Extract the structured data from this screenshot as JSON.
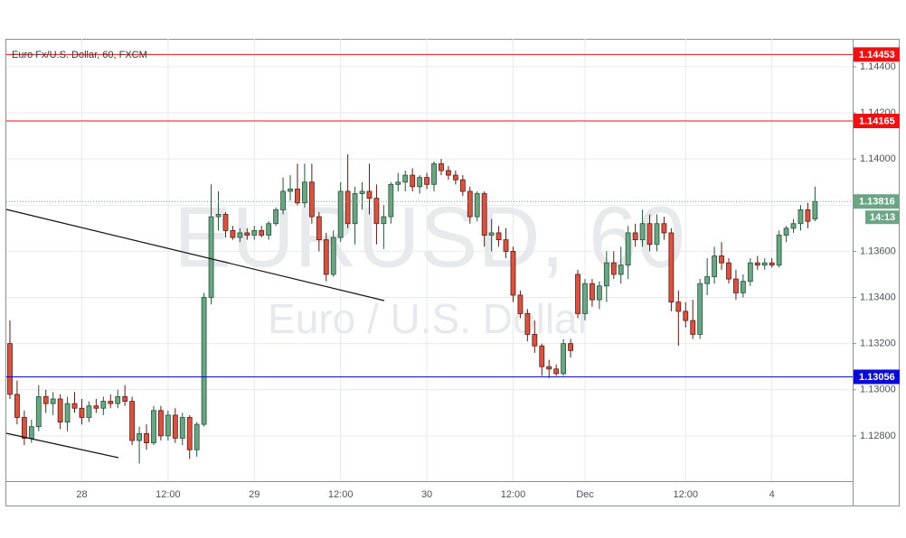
{
  "chart_data": {
    "type": "candlestick",
    "title": "Euro Fx/U.S. Dollar, 60, FXCM",
    "watermark": "EURUSD, 60",
    "watermark_subtitle": "Euro / U.S. Dollar",
    "categories": [
      null,
      null,
      null,
      null,
      null,
      null,
      null,
      null,
      null,
      null,
      "28",
      null,
      null,
      null,
      null,
      null,
      null,
      null,
      null,
      null,
      null,
      null,
      "12:00",
      null,
      null,
      null,
      null,
      null,
      null,
      null,
      null,
      null,
      null,
      null,
      "29",
      null,
      null,
      null,
      null,
      null,
      null,
      null,
      null,
      null,
      null,
      null,
      "12:00",
      null,
      null,
      null,
      null,
      null,
      null,
      null,
      null,
      null,
      null,
      null,
      "30",
      null,
      null,
      null,
      null,
      null,
      null,
      null,
      null,
      null,
      null,
      null,
      "12:00",
      null,
      null,
      null,
      null,
      null,
      null,
      null,
      null,
      null,
      "Dec",
      null,
      null,
      null,
      null,
      null,
      null,
      null,
      null,
      null,
      null,
      null,
      null,
      null,
      "12:00",
      null,
      null,
      null,
      null,
      null,
      null,
      null,
      null,
      null,
      null,
      null,
      "4",
      null,
      null,
      null,
      null,
      null,
      null
    ],
    "open": [
      1.132,
      1.1298,
      1.1288,
      1.1279,
      1.1284,
      1.1297,
      1.1294,
      1.1296,
      1.1286,
      1.1294,
      1.1292,
      1.1288,
      1.1293,
      1.1292,
      1.1295,
      1.1294,
      1.1297,
      1.1295,
      1.1278,
      1.1281,
      1.1277,
      1.1291,
      1.128,
      1.1289,
      1.1279,
      1.1288,
      1.1274,
      1.1285,
      1.134,
      1.1375,
      1.1376,
      1.1369,
      1.1366,
      1.1368,
      1.1367,
      1.1369,
      1.1367,
      1.1372,
      1.1378,
      1.1386,
      1.1387,
      1.1381,
      1.139,
      1.1375,
      1.1365,
      1.135,
      1.1366,
      1.1386,
      1.1372,
      1.1385,
      1.1386,
      1.1383,
      1.1372,
      1.1375,
      1.1389,
      1.139,
      1.1393,
      1.1388,
      1.1392,
      1.1389,
      1.1398,
      1.1395,
      1.1393,
      1.1391,
      1.1386,
      1.1375,
      1.1385,
      1.1367,
      1.1368,
      1.1365,
      1.136,
      1.1341,
      1.1333,
      1.1324,
      1.1319,
      1.131,
      1.1309,
      1.1307,
      1.132,
      1.135,
      1.1333,
      1.1346,
      1.1339,
      1.1345,
      1.1355,
      1.135,
      1.1354,
      1.1368,
      1.1365,
      1.1372,
      1.1363,
      1.1372,
      1.1368,
      1.1338,
      1.1334,
      1.133,
      1.1324,
      1.1346,
      1.1349,
      1.1358,
      1.1355,
      1.1348,
      1.1342,
      1.1347,
      1.1355,
      1.1354,
      1.1355,
      1.1354,
      1.1367,
      1.137,
      1.1372,
      1.1378,
      1.1374
    ],
    "high": [
      1.133,
      1.1304,
      1.1291,
      1.1287,
      1.1302,
      1.13,
      1.1299,
      1.1298,
      1.1297,
      1.1299,
      1.1296,
      1.1295,
      1.1296,
      1.1297,
      1.1298,
      1.13,
      1.1302,
      1.1297,
      1.1284,
      1.1285,
      1.1293,
      1.1293,
      1.1291,
      1.1292,
      1.129,
      1.1289,
      1.1286,
      1.1342,
      1.1389,
      1.1386,
      1.1377,
      1.1371,
      1.137,
      1.137,
      1.1371,
      1.1371,
      1.1373,
      1.1379,
      1.1392,
      1.1393,
      1.1398,
      1.1398,
      1.1398,
      1.1377,
      1.1368,
      1.1369,
      1.139,
      1.1402,
      1.1388,
      1.139,
      1.1398,
      1.1389,
      1.138,
      1.139,
      1.1394,
      1.1395,
      1.1396,
      1.1393,
      1.1394,
      1.1399,
      1.14,
      1.1397,
      1.1395,
      1.1393,
      1.1388,
      1.1386,
      1.1386,
      1.1374,
      1.1371,
      1.137,
      1.1362,
      1.1343,
      1.1335,
      1.133,
      1.132,
      1.1313,
      1.1311,
      1.1322,
      1.1322,
      1.1352,
      1.1348,
      1.1348,
      1.1347,
      1.136,
      1.136,
      1.1362,
      1.1371,
      1.1372,
      1.1378,
      1.1376,
      1.1376,
      1.1375,
      1.137,
      1.1343,
      1.1338,
      1.1339,
      1.1348,
      1.1357,
      1.1362,
      1.1364,
      1.1357,
      1.1352,
      1.135,
      1.1357,
      1.1358,
      1.1357,
      1.1357,
      1.1369,
      1.1371,
      1.1374,
      1.138,
      1.1381,
      1.1388
    ],
    "low": [
      1.1296,
      1.1285,
      1.1276,
      1.1277,
      1.1282,
      1.129,
      1.1289,
      1.1283,
      1.1282,
      1.129,
      1.1285,
      1.1286,
      1.129,
      1.1289,
      1.1292,
      1.1292,
      1.1293,
      1.1276,
      1.1268,
      1.1274,
      1.1276,
      1.1278,
      1.1278,
      1.1277,
      1.1276,
      1.127,
      1.1271,
      1.1284,
      1.1337,
      1.1369,
      1.1366,
      1.1365,
      1.1364,
      1.1365,
      1.1365,
      1.1366,
      1.1365,
      1.1371,
      1.1376,
      1.1382,
      1.138,
      1.1379,
      1.1372,
      1.136,
      1.1347,
      1.1349,
      1.1364,
      1.137,
      1.1363,
      1.1378,
      1.1376,
      1.1363,
      1.1361,
      1.1372,
      1.1386,
      1.1386,
      1.1386,
      1.1385,
      1.1387,
      1.1386,
      1.1393,
      1.1391,
      1.1389,
      1.1384,
      1.1372,
      1.1373,
      1.1362,
      1.136,
      1.1362,
      1.1357,
      1.1338,
      1.1331,
      1.1321,
      1.1316,
      1.1306,
      1.1305,
      1.1306,
      1.1306,
      1.1314,
      1.1331,
      1.133,
      1.1336,
      1.1335,
      1.1338,
      1.1348,
      1.1346,
      1.1348,
      1.1362,
      1.1362,
      1.136,
      1.136,
      1.1365,
      1.1334,
      1.1319,
      1.1327,
      1.1322,
      1.1322,
      1.1341,
      1.1346,
      1.1352,
      1.1346,
      1.1339,
      1.134,
      1.1345,
      1.1352,
      1.1352,
      1.1353,
      1.1353,
      1.1364,
      1.1368,
      1.1369,
      1.137,
      1.1373
    ],
    "close": [
      1.1298,
      1.1288,
      1.1279,
      1.1284,
      1.1297,
      1.1294,
      1.1296,
      1.1286,
      1.1294,
      1.1292,
      1.1288,
      1.1293,
      1.1292,
      1.1295,
      1.1294,
      1.1297,
      1.1295,
      1.1278,
      1.1281,
      1.1277,
      1.1291,
      1.128,
      1.1289,
      1.1279,
      1.1288,
      1.1274,
      1.1285,
      1.134,
      1.1375,
      1.1376,
      1.1369,
      1.1366,
      1.1368,
      1.1367,
      1.1369,
      1.1367,
      1.1372,
      1.1378,
      1.1386,
      1.1387,
      1.1381,
      1.139,
      1.1375,
      1.1365,
      1.135,
      1.1366,
      1.1386,
      1.1372,
      1.1385,
      1.1386,
      1.1383,
      1.1372,
      1.1375,
      1.1389,
      1.139,
      1.1393,
      1.1388,
      1.1392,
      1.1389,
      1.1398,
      1.1395,
      1.1393,
      1.1391,
      1.1386,
      1.1375,
      1.1385,
      1.1367,
      1.1368,
      1.1365,
      1.136,
      1.1341,
      1.1333,
      1.1324,
      1.1319,
      1.131,
      1.1309,
      1.1307,
      1.132,
      1.1317,
      1.1333,
      1.1346,
      1.1339,
      1.1345,
      1.1355,
      1.135,
      1.1354,
      1.1368,
      1.1365,
      1.1372,
      1.1363,
      1.1372,
      1.1368,
      1.1338,
      1.1334,
      1.133,
      1.1324,
      1.1346,
      1.1349,
      1.1358,
      1.1355,
      1.1348,
      1.1342,
      1.1347,
      1.1355,
      1.1354,
      1.1355,
      1.1354,
      1.1367,
      1.137,
      1.1372,
      1.1378,
      1.1373,
      1.13816
    ],
    "up_color": "#6ba583",
    "down_color": "#d75442",
    "ylim": [
      1.12604,
      1.14521
    ],
    "yticks": [
      {
        "value": 1.128,
        "label": "1.12800"
      },
      {
        "value": 1.13,
        "label": "1.13000"
      },
      {
        "value": 1.132,
        "label": "1.13200"
      },
      {
        "value": 1.134,
        "label": "1.13400"
      },
      {
        "value": 1.136,
        "label": "1.13600"
      },
      {
        "value": 1.138,
        "label": "1.13800"
      },
      {
        "value": 1.14,
        "label": "1.14000"
      },
      {
        "value": 1.142,
        "label": "1.14200"
      },
      {
        "value": 1.144,
        "label": "1.14400"
      }
    ],
    "grid": true,
    "levels": [
      {
        "value": 1.14453,
        "color": "#ee1111"
      },
      {
        "value": 1.14165,
        "color": "#ee1111"
      },
      {
        "value": 1.13056,
        "color": "#0a0ad8"
      }
    ],
    "countdown": "14:13"
  }
}
